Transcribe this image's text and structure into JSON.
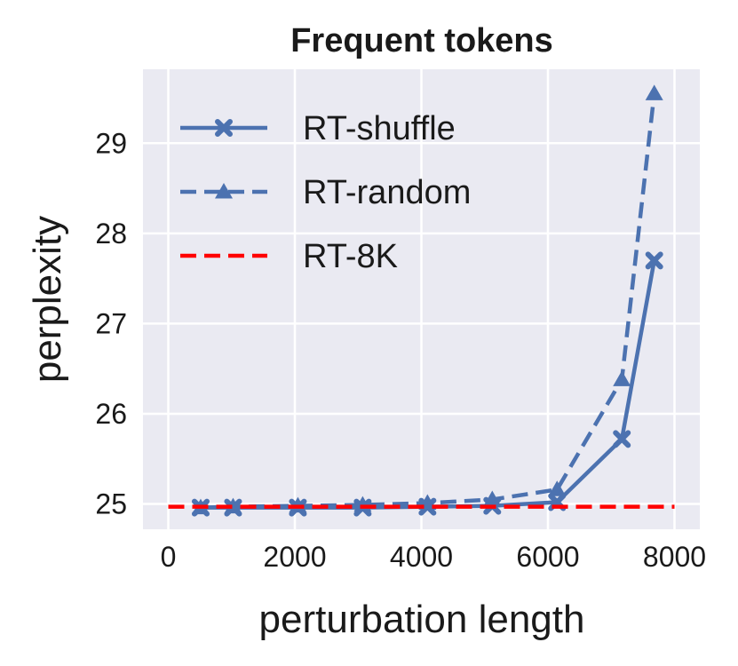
{
  "chart_data": {
    "type": "line",
    "title": "Frequent tokens",
    "xlabel": "perturbation length",
    "ylabel": "perplexity",
    "xlim": [
      -400,
      8400
    ],
    "ylim": [
      24.72,
      29.82
    ],
    "xticks": [
      0,
      2000,
      4000,
      6000,
      8000
    ],
    "yticks": [
      25,
      26,
      27,
      28,
      29
    ],
    "grid": true,
    "legend_position": "top-left",
    "series": [
      {
        "name": "RT-shuffle",
        "color": "#4c72b0",
        "line_style": "solid",
        "marker": "x",
        "x": [
          512,
          1024,
          2048,
          3072,
          4096,
          5120,
          6144,
          7168,
          7680
        ],
        "y": [
          24.96,
          24.96,
          24.96,
          24.96,
          24.97,
          24.98,
          25.02,
          25.72,
          27.7
        ]
      },
      {
        "name": "RT-random",
        "color": "#4c72b0",
        "line_style": "dashed",
        "marker": "triangle",
        "x": [
          512,
          1024,
          2048,
          3072,
          4096,
          5120,
          6144,
          7168,
          7680
        ],
        "y": [
          24.96,
          24.97,
          24.98,
          24.99,
          25.01,
          25.05,
          25.16,
          26.38,
          29.55
        ]
      },
      {
        "name": "RT-8K",
        "color": "#ff0000",
        "line_style": "dashed",
        "marker": "none",
        "x": [
          0,
          8000
        ],
        "y": [
          24.97,
          24.97
        ]
      }
    ]
  }
}
